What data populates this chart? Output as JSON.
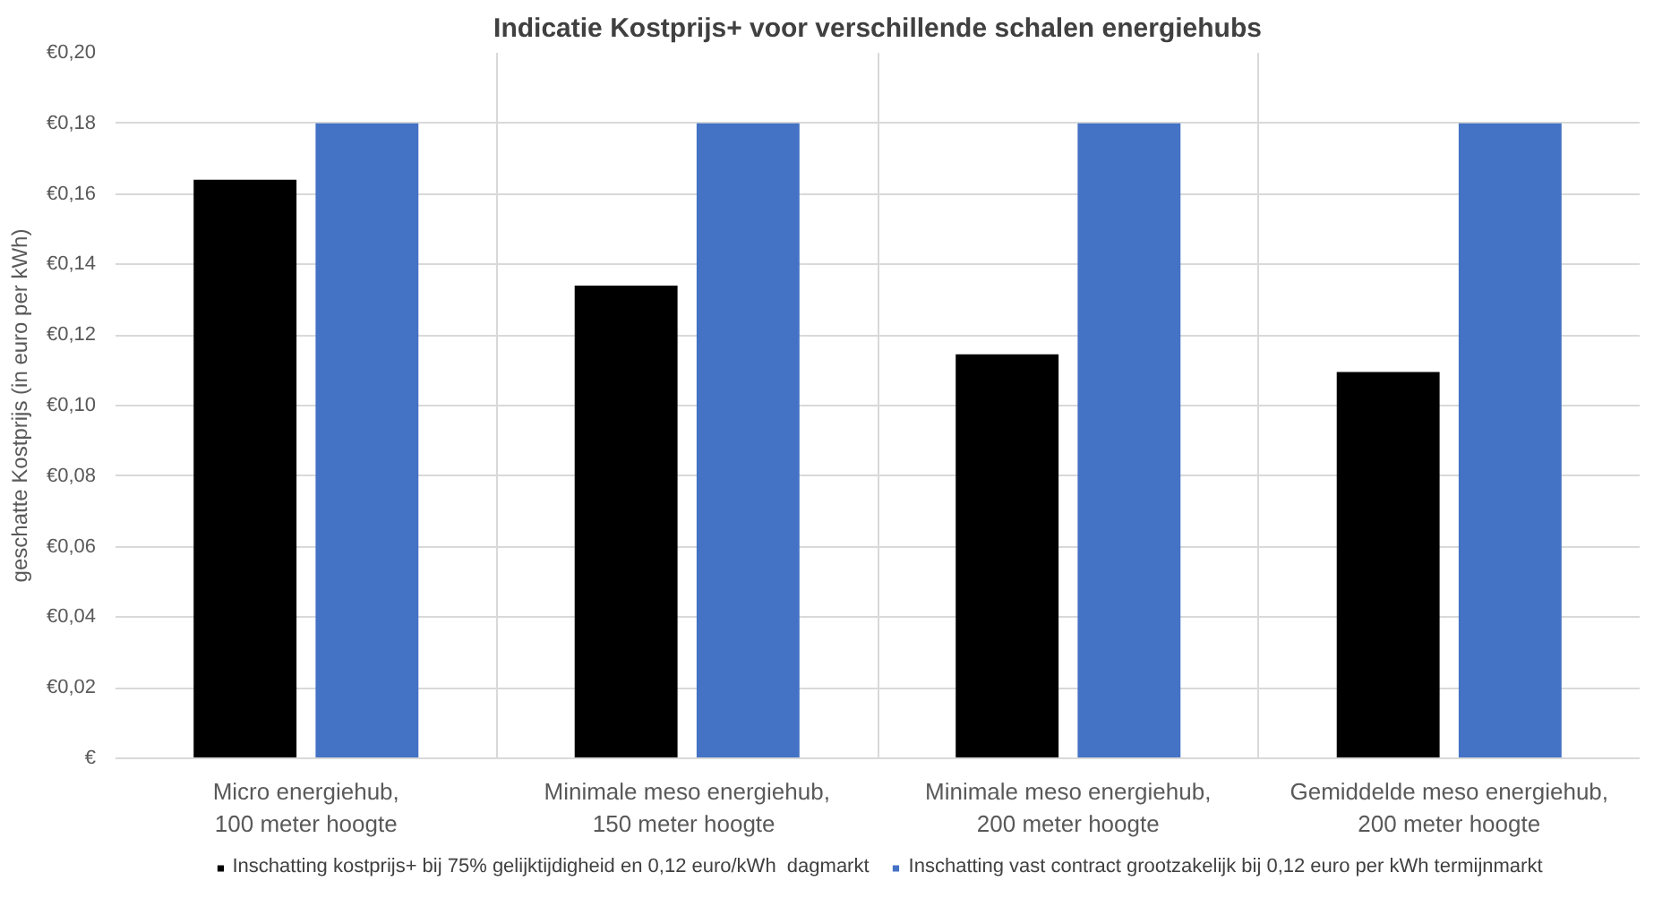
{
  "chart_data": {
    "type": "bar",
    "title": "Indicatie Kostprijs+ voor verschillende schalen energiehubs",
    "ylabel": "geschatte Kostprijs (in euro per kWh)",
    "categories": [
      "Micro energiehub,\n100 meter hoogte",
      "Minimale meso energiehub,\n150 meter  hoogte",
      "Minimale meso energiehub,\n200 meter hoogte",
      "Gemiddelde meso energiehub,\n200 meter hoogte"
    ],
    "series": [
      {
        "name": "Inschatting kostprijs+ bij 75% gelijktijdigheid en 0,12 euro/kWh  dagmarkt",
        "color": "#000000",
        "values": [
          0.164,
          0.134,
          0.1145,
          0.1095
        ]
      },
      {
        "name": "Inschatting vast contract grootzakelijk bij 0,12 euro per kWh termijnmarkt",
        "color": "#4472c4",
        "values": [
          0.18,
          0.18,
          0.18,
          0.18
        ]
      }
    ],
    "ylim": [
      0,
      0.2
    ],
    "yticks": [
      {
        "value": 0,
        "label": "€"
      },
      {
        "value": 0.02,
        "label": "€0,02"
      },
      {
        "value": 0.04,
        "label": "€0,04"
      },
      {
        "value": 0.06,
        "label": "€0,06"
      },
      {
        "value": 0.08,
        "label": "€0,08"
      },
      {
        "value": 0.1,
        "label": "€0,10"
      },
      {
        "value": 0.12,
        "label": "€0,12"
      },
      {
        "value": 0.14,
        "label": "€0,14"
      },
      {
        "value": 0.16,
        "label": "€0,16"
      },
      {
        "value": 0.18,
        "label": "€0,18"
      },
      {
        "value": 0.2,
        "label": "€0,20"
      }
    ],
    "grid": true,
    "legend": "bottom"
  }
}
